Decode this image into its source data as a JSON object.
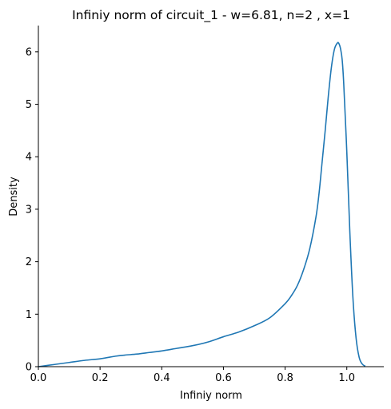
{
  "chart_data": {
    "type": "line",
    "title": "Infiniy norm of circuit_1 - w=6.81, n=2 , x=1",
    "xlabel": "Infiniy norm",
    "ylabel": "Density",
    "xlim": [
      0.0,
      1.12
    ],
    "ylim": [
      0,
      6.5
    ],
    "xticks": [
      "0.0",
      "0.2",
      "0.4",
      "0.6",
      "0.8",
      "1.0"
    ],
    "yticks": [
      "0",
      "1",
      "2",
      "3",
      "4",
      "5",
      "6"
    ],
    "grid": false,
    "line_color": "#1f77b4",
    "series": [
      {
        "x": [
          0.0,
          0.05,
          0.1,
          0.15,
          0.2,
          0.25,
          0.28,
          0.32,
          0.36,
          0.4,
          0.45,
          0.5,
          0.55,
          0.6,
          0.65,
          0.7,
          0.75,
          0.8,
          0.82,
          0.84,
          0.86,
          0.88,
          0.9,
          0.91,
          0.92,
          0.93,
          0.94,
          0.95,
          0.96,
          0.97,
          0.975,
          0.98,
          0.985,
          0.99,
          1.0,
          1.01,
          1.02,
          1.03,
          1.04,
          1.05,
          1.06
        ],
        "y": [
          0.0,
          0.04,
          0.08,
          0.12,
          0.15,
          0.2,
          0.22,
          0.24,
          0.27,
          0.3,
          0.35,
          0.4,
          0.47,
          0.57,
          0.66,
          0.78,
          0.93,
          1.2,
          1.35,
          1.55,
          1.85,
          2.25,
          2.85,
          3.3,
          3.9,
          4.5,
          5.15,
          5.7,
          6.05,
          6.17,
          6.15,
          6.05,
          5.85,
          5.4,
          4.1,
          2.55,
          1.3,
          0.55,
          0.18,
          0.05,
          0.01
        ]
      }
    ]
  }
}
